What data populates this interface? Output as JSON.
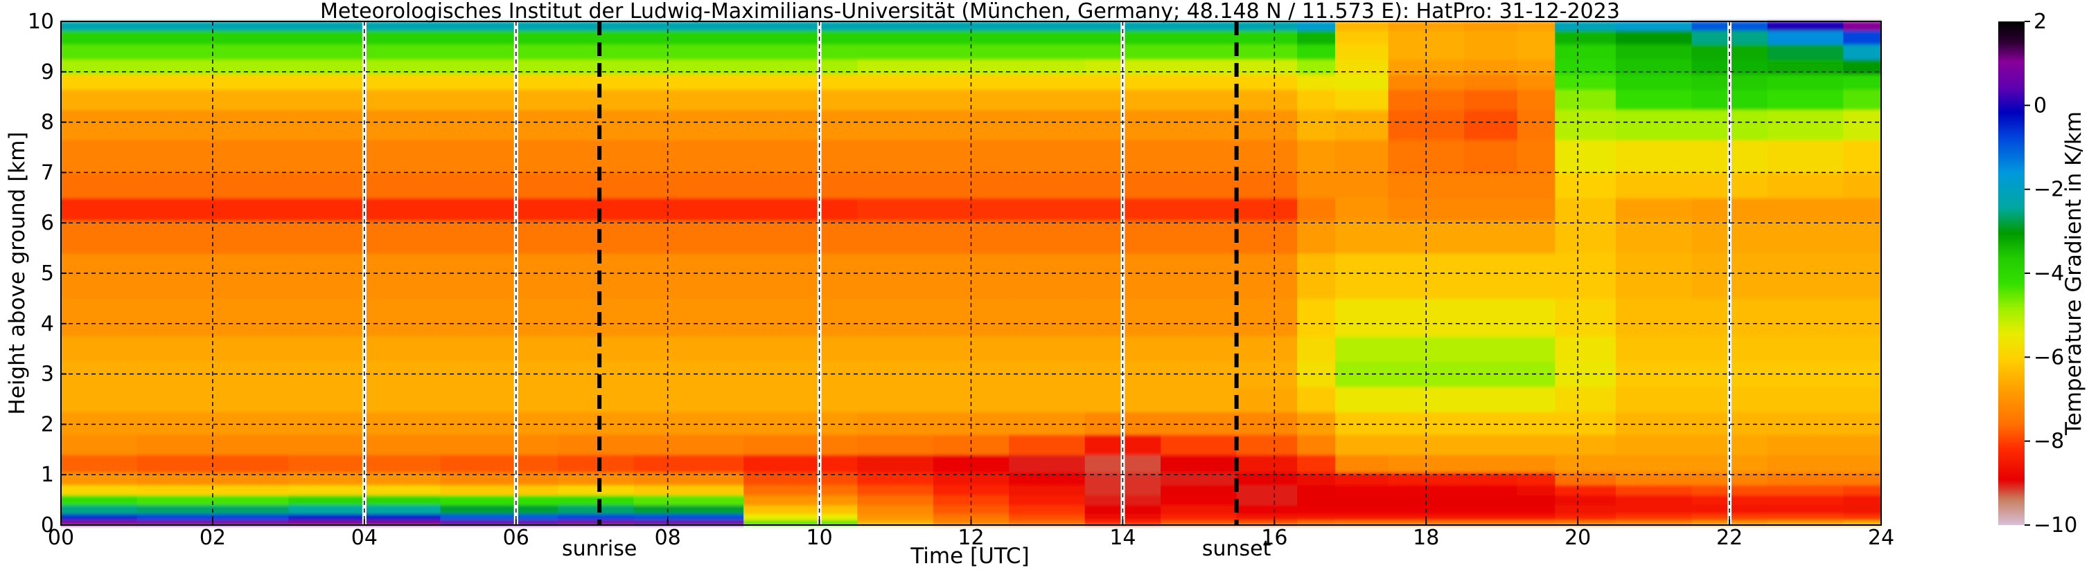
{
  "chart_data": {
    "type": "heatmap",
    "title": "Meteorologisches Institut der Ludwig-Maximilians-Universität (München, Germany; 48.148 N / 11.573 E):    HatPro: 31-12-2023",
    "xlabel": "Time [UTC]",
    "ylabel": "Height above ground [km]",
    "xlim": [
      0,
      24
    ],
    "ylim": [
      0,
      10
    ],
    "x_ticks": [
      "00",
      "02",
      "04",
      "06",
      "08",
      "10",
      "12",
      "14",
      "16",
      "18",
      "20",
      "22",
      "24"
    ],
    "y_ticks": [
      "0",
      "1",
      "2",
      "3",
      "4",
      "5",
      "6",
      "7",
      "8",
      "9",
      "10"
    ],
    "grid": true,
    "colorbar": {
      "label": "Temperature Gradient in K/km",
      "range": [
        -10,
        2
      ],
      "ticks": [
        "2",
        "0",
        "−2",
        "−4",
        "−6",
        "−8",
        "−10"
      ]
    },
    "annotations": [
      {
        "label": "sunrise",
        "x": 7.1
      },
      {
        "label": "sunset",
        "x": 15.5
      }
    ],
    "data_gaps_x": [
      4.0,
      6.0,
      10.0,
      14.0,
      22.0
    ],
    "profile_times": [
      0,
      2,
      4,
      6,
      7.1,
      8,
      10,
      11,
      12,
      13,
      14,
      15,
      16,
      16.6,
      17,
      18,
      19,
      19.4,
      20,
      21,
      22,
      23,
      24
    ],
    "heights": [
      0.05,
      0.15,
      0.3,
      0.5,
      0.7,
      0.9,
      1.2,
      1.6,
      2.0,
      2.5,
      3.0,
      3.5,
      4.0,
      5.0,
      5.8,
      6.3,
      6.7,
      7.3,
      8.0,
      8.5,
      8.8,
      9.1,
      9.4,
      9.7,
      9.95
    ],
    "values": [
      [
        1.0,
        -0.6,
        -2.5,
        -4.2,
        -6.0,
        -7.0,
        -7.7,
        -7.1,
        -6.9,
        -6.6,
        -6.6,
        -6.7,
        -7.0,
        -7.1,
        -7.5,
        -8.2,
        -7.6,
        -7.3,
        -7.0,
        -6.6,
        -6.1,
        -5.0,
        -4.5,
        -3.8,
        -2.2
      ],
      [
        0.8,
        -0.8,
        -2.6,
        -4.4,
        -6.1,
        -7.1,
        -7.8,
        -7.2,
        -6.9,
        -6.6,
        -6.6,
        -6.7,
        -7.0,
        -7.1,
        -7.5,
        -8.2,
        -7.6,
        -7.3,
        -7.0,
        -6.6,
        -6.1,
        -5.0,
        -4.5,
        -3.8,
        -2.2
      ],
      [
        1.0,
        -0.5,
        -2.4,
        -4.0,
        -6.0,
        -7.0,
        -7.7,
        -7.2,
        -6.9,
        -6.6,
        -6.6,
        -6.7,
        -7.0,
        -7.1,
        -7.5,
        -8.2,
        -7.6,
        -7.3,
        -7.0,
        -6.6,
        -6.1,
        -5.0,
        -4.5,
        -3.8,
        -2.2
      ],
      [
        0.5,
        -1.0,
        -2.8,
        -4.3,
        -6.2,
        -7.2,
        -7.8,
        -7.2,
        -6.9,
        -6.6,
        -6.6,
        -6.7,
        -7.0,
        -7.1,
        -7.5,
        -8.2,
        -7.6,
        -7.3,
        -7.0,
        -6.6,
        -6.1,
        -5.0,
        -4.5,
        -3.8,
        -2.2
      ],
      [
        0.8,
        -0.8,
        -2.6,
        -4.2,
        -6.0,
        -7.1,
        -7.9,
        -7.3,
        -6.9,
        -6.6,
        -6.6,
        -6.7,
        -7.0,
        -7.1,
        -7.5,
        -8.2,
        -7.6,
        -7.3,
        -7.0,
        -6.6,
        -6.1,
        -5.0,
        -4.5,
        -3.8,
        -2.2
      ],
      [
        0.6,
        -0.9,
        -2.8,
        -4.5,
        -6.2,
        -7.2,
        -8.0,
        -7.3,
        -6.9,
        -6.6,
        -6.6,
        -6.7,
        -7.0,
        -7.1,
        -7.5,
        -8.2,
        -7.6,
        -7.3,
        -7.0,
        -6.6,
        -6.1,
        -5.0,
        -4.5,
        -3.8,
        -2.2
      ],
      [
        -4.5,
        -5.5,
        -6.3,
        -7.0,
        -7.6,
        -7.9,
        -8.3,
        -7.4,
        -6.9,
        -6.6,
        -6.6,
        -6.7,
        -7.0,
        -7.1,
        -7.5,
        -8.2,
        -7.6,
        -7.3,
        -7.0,
        -6.6,
        -6.1,
        -5.0,
        -4.5,
        -3.8,
        -2.2
      ],
      [
        -6.5,
        -7.0,
        -7.2,
        -7.6,
        -7.9,
        -8.2,
        -8.6,
        -7.5,
        -7.0,
        -6.6,
        -6.6,
        -6.7,
        -7.0,
        -7.1,
        -7.5,
        -8.1,
        -7.6,
        -7.3,
        -7.0,
        -6.6,
        -6.1,
        -5.2,
        -4.5,
        -3.8,
        -2.2
      ],
      [
        -7.2,
        -7.5,
        -7.8,
        -8.0,
        -8.3,
        -8.5,
        -8.8,
        -7.6,
        -7.0,
        -6.6,
        -6.6,
        -6.7,
        -7.0,
        -7.1,
        -7.5,
        -8.1,
        -7.6,
        -7.3,
        -7.0,
        -6.6,
        -6.1,
        -5.2,
        -4.5,
        -3.8,
        -2.2
      ],
      [
        -7.6,
        -7.9,
        -8.1,
        -8.4,
        -8.6,
        -8.8,
        -9.0,
        -7.9,
        -7.0,
        -6.6,
        -6.6,
        -6.7,
        -7.0,
        -7.1,
        -7.5,
        -8.1,
        -7.6,
        -7.3,
        -7.0,
        -6.6,
        -6.1,
        -5.2,
        -4.5,
        -3.8,
        -2.2
      ],
      [
        -8.2,
        -8.7,
        -8.9,
        -9.0,
        -9.1,
        -9.1,
        -9.2,
        -8.5,
        -7.2,
        -6.6,
        -6.6,
        -6.7,
        -7.0,
        -7.1,
        -7.5,
        -8.1,
        -7.6,
        -7.3,
        -7.0,
        -6.6,
        -6.1,
        -5.3,
        -4.5,
        -3.8,
        -2.2
      ],
      [
        -7.8,
        -8.3,
        -8.6,
        -8.8,
        -8.9,
        -9.0,
        -8.9,
        -8.0,
        -7.2,
        -6.6,
        -6.6,
        -6.7,
        -7.0,
        -7.1,
        -7.5,
        -8.1,
        -7.6,
        -7.3,
        -7.0,
        -6.6,
        -6.1,
        -5.3,
        -4.5,
        -3.8,
        -2.2
      ],
      [
        -7.8,
        -8.6,
        -8.8,
        -9.0,
        -9.0,
        -8.9,
        -8.6,
        -7.8,
        -7.2,
        -6.7,
        -6.6,
        -6.7,
        -7.0,
        -7.1,
        -7.5,
        -8.1,
        -7.6,
        -7.3,
        -7.0,
        -6.6,
        -6.1,
        -5.3,
        -4.5,
        -3.8,
        -2.2
      ],
      [
        -7.6,
        -8.5,
        -8.8,
        -8.9,
        -8.9,
        -8.7,
        -8.1,
        -7.3,
        -6.8,
        -6.2,
        -5.8,
        -5.9,
        -6.1,
        -6.4,
        -6.9,
        -7.4,
        -7.1,
        -6.9,
        -6.5,
        -6.2,
        -5.7,
        -4.9,
        -4.1,
        -3.3,
        -1.8
      ],
      [
        -7.5,
        -8.5,
        -8.8,
        -8.9,
        -8.8,
        -8.5,
        -7.2,
        -6.6,
        -6.2,
        -5.6,
        -4.9,
        -5.1,
        -5.7,
        -6.2,
        -6.7,
        -7.0,
        -7.1,
        -7.0,
        -6.6,
        -6.0,
        -5.6,
        -5.8,
        -6.0,
        -6.2,
        -6.5
      ],
      [
        -7.5,
        -8.5,
        -8.8,
        -8.9,
        -8.8,
        -8.4,
        -7.1,
        -6.6,
        -6.2,
        -5.6,
        -4.9,
        -5.1,
        -5.7,
        -6.2,
        -6.7,
        -7.2,
        -7.3,
        -7.5,
        -7.7,
        -7.6,
        -7.2,
        -6.8,
        -6.6,
        -6.6,
        -6.8
      ],
      [
        -7.5,
        -8.5,
        -8.8,
        -8.9,
        -8.8,
        -8.4,
        -7.1,
        -6.6,
        -6.2,
        -5.6,
        -4.9,
        -5.1,
        -5.7,
        -6.2,
        -6.7,
        -7.2,
        -7.3,
        -7.6,
        -7.9,
        -7.7,
        -7.3,
        -6.9,
        -6.7,
        -6.7,
        -6.9
      ],
      [
        -7.5,
        -8.5,
        -8.8,
        -8.9,
        -8.7,
        -8.3,
        -7.1,
        -6.6,
        -6.2,
        -5.6,
        -4.9,
        -5.1,
        -5.7,
        -6.2,
        -6.7,
        -7.2,
        -7.3,
        -7.4,
        -7.5,
        -7.4,
        -7.1,
        -6.8,
        -6.6,
        -6.6,
        -6.8
      ],
      [
        -7.4,
        -8.3,
        -8.6,
        -8.7,
        -8.3,
        -7.6,
        -6.9,
        -6.6,
        -6.2,
        -5.9,
        -5.6,
        -5.7,
        -6.0,
        -6.2,
        -6.3,
        -6.3,
        -6.1,
        -5.6,
        -5.1,
        -4.8,
        -4.4,
        -4.0,
        -3.8,
        -3.3,
        -2.1
      ],
      [
        -7.3,
        -8.1,
        -8.5,
        -8.5,
        -8.0,
        -7.3,
        -6.9,
        -6.7,
        -6.5,
        -6.3,
        -6.2,
        -6.3,
        -6.4,
        -6.5,
        -6.6,
        -6.8,
        -6.3,
        -5.8,
        -5.0,
        -4.2,
        -3.8,
        -3.5,
        -3.4,
        -3.0,
        -1.8
      ],
      [
        -7.0,
        -8.0,
        -8.5,
        -8.4,
        -7.9,
        -7.3,
        -6.9,
        -6.7,
        -6.5,
        -6.3,
        -6.2,
        -6.3,
        -6.4,
        -6.6,
        -6.7,
        -6.9,
        -6.3,
        -5.8,
        -5.0,
        -4.0,
        -3.6,
        -3.3,
        -3.2,
        -2.5,
        -1.0
      ],
      [
        -6.8,
        -8.0,
        -8.5,
        -8.4,
        -7.9,
        -7.4,
        -7.0,
        -6.8,
        -6.5,
        -6.3,
        -6.2,
        -6.3,
        -6.4,
        -6.6,
        -6.7,
        -6.9,
        -6.4,
        -5.9,
        -5.1,
        -4.2,
        -3.8,
        -3.2,
        -2.8,
        -1.5,
        0.0
      ],
      [
        -6.6,
        -8.1,
        -8.6,
        -8.5,
        -8.0,
        -7.4,
        -7.0,
        -6.8,
        -6.5,
        -6.3,
        -6.2,
        -6.3,
        -6.4,
        -6.6,
        -6.7,
        -6.9,
        -6.5,
        -6.1,
        -5.3,
        -4.5,
        -4.0,
        -3.0,
        -2.0,
        -0.8,
        1.0
      ],
      [
        -6.4,
        -8.1,
        -8.6,
        -8.5,
        -8.0,
        -7.4,
        -7.0,
        -6.8,
        -6.5,
        -6.3,
        -6.2,
        -6.3,
        -6.4,
        -6.6,
        -6.7,
        -6.9,
        -6.6,
        -6.2,
        -5.5,
        -4.8,
        -4.3,
        -2.8,
        -1.5,
        -0.3,
        1.5
      ],
      [
        -6.3,
        -8.1,
        -8.6,
        -8.5,
        -8.0,
        -7.4,
        -7.0,
        -6.8,
        -6.5,
        -6.3,
        -6.2,
        -6.3,
        -6.4,
        -6.6,
        -6.7,
        -6.9,
        -6.6,
        -6.3,
        -5.6,
        -4.9,
        -4.4,
        -2.8,
        -1.4,
        -0.2,
        1.5
      ]
    ]
  }
}
